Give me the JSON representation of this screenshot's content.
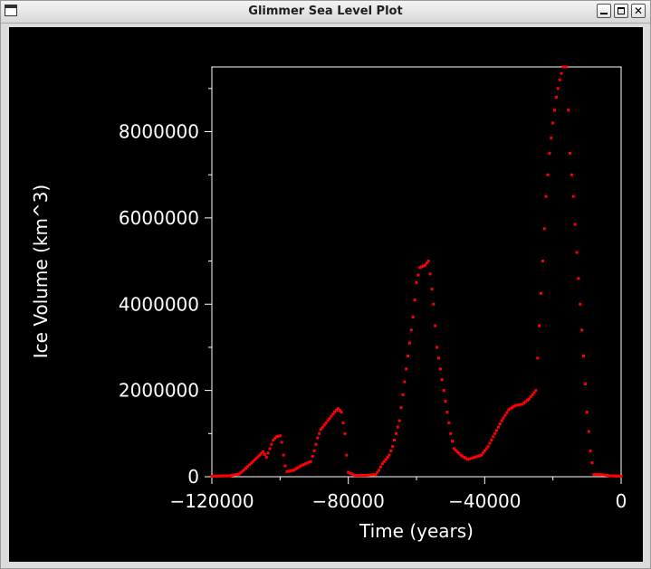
{
  "window": {
    "title": "Glimmer Sea Level Plot",
    "buttons": {
      "minimize": "minimize-icon",
      "maximize": "maximize-icon",
      "close": "close-icon"
    }
  },
  "colors": {
    "background": "#000000",
    "axes": "#ffffff",
    "points": "#ff0000"
  },
  "chart_data": {
    "type": "scatter",
    "title": "",
    "xlabel": "Time (years)",
    "ylabel": "Ice Volume (km^3)",
    "xlim": [
      -120000,
      0
    ],
    "ylim": [
      0,
      9500000
    ],
    "xticks": [
      -120000,
      -80000,
      -40000,
      0
    ],
    "xtick_labels": [
      "−120000",
      "−80000",
      "−40000",
      "0"
    ],
    "yticks": [
      0,
      2000000,
      4000000,
      6000000,
      8000000
    ],
    "ytick_labels": [
      "0",
      "2000000",
      "4000000",
      "6000000",
      "8000000"
    ],
    "grid": false,
    "series": [
      {
        "color": "#ff0000",
        "points": [
          [
            -120000,
            10000
          ],
          [
            -115000,
            20000
          ],
          [
            -112000,
            60000
          ],
          [
            -110000,
            200000
          ],
          [
            -108000,
            350000
          ],
          [
            -106000,
            500000
          ],
          [
            -105000,
            580000
          ],
          [
            -104000,
            450000
          ],
          [
            -103000,
            650000
          ],
          [
            -102000,
            850000
          ],
          [
            -101000,
            930000
          ],
          [
            -100000,
            950000
          ],
          [
            -99500,
            800000
          ],
          [
            -99000,
            500000
          ],
          [
            -98500,
            250000
          ],
          [
            -98000,
            120000
          ],
          [
            -96000,
            150000
          ],
          [
            -94000,
            250000
          ],
          [
            -92000,
            320000
          ],
          [
            -91000,
            350000
          ],
          [
            -90000,
            600000
          ],
          [
            -89000,
            900000
          ],
          [
            -88000,
            1100000
          ],
          [
            -86000,
            1300000
          ],
          [
            -84000,
            1500000
          ],
          [
            -83000,
            1580000
          ],
          [
            -82000,
            1500000
          ],
          [
            -81000,
            1000000
          ],
          [
            -80500,
            500000
          ],
          [
            -80000,
            100000
          ],
          [
            -78000,
            30000
          ],
          [
            -75000,
            30000
          ],
          [
            -72000,
            50000
          ],
          [
            -71000,
            150000
          ],
          [
            -70000,
            300000
          ],
          [
            -68000,
            500000
          ],
          [
            -67000,
            700000
          ],
          [
            -65000,
            1300000
          ],
          [
            -63000,
            2500000
          ],
          [
            -61000,
            3700000
          ],
          [
            -60000,
            4500000
          ],
          [
            -59000,
            4850000
          ],
          [
            -57500,
            4900000
          ],
          [
            -56500,
            5000000
          ],
          [
            -56000,
            4700000
          ],
          [
            -55000,
            4000000
          ],
          [
            -54000,
            3000000
          ],
          [
            -52000,
            2000000
          ],
          [
            -50000,
            1000000
          ],
          [
            -49000,
            650000
          ],
          [
            -47000,
            500000
          ],
          [
            -45000,
            400000
          ],
          [
            -43000,
            450000
          ],
          [
            -41000,
            500000
          ],
          [
            -39000,
            700000
          ],
          [
            -37000,
            1000000
          ],
          [
            -35000,
            1300000
          ],
          [
            -33000,
            1550000
          ],
          [
            -31000,
            1650000
          ],
          [
            -29000,
            1680000
          ],
          [
            -27000,
            1800000
          ],
          [
            -25000,
            2000000
          ],
          [
            -24000,
            3500000
          ],
          [
            -23000,
            5000000
          ],
          [
            -22000,
            6500000
          ],
          [
            -21000,
            7500000
          ],
          [
            -20000,
            8200000
          ],
          [
            -19000,
            8800000
          ],
          [
            -18000,
            9200000
          ],
          [
            -17000,
            9500000
          ],
          [
            -16000,
            9500000
          ],
          [
            -15500,
            8500000
          ],
          [
            -15000,
            7500000
          ],
          [
            -14000,
            6500000
          ],
          [
            -13000,
            5200000
          ],
          [
            -12000,
            4000000
          ],
          [
            -11000,
            2800000
          ],
          [
            -10000,
            1500000
          ],
          [
            -9000,
            600000
          ],
          [
            -8000,
            50000
          ],
          [
            -6000,
            50000
          ],
          [
            -3000,
            20000
          ],
          [
            0,
            10000
          ]
        ]
      }
    ]
  }
}
